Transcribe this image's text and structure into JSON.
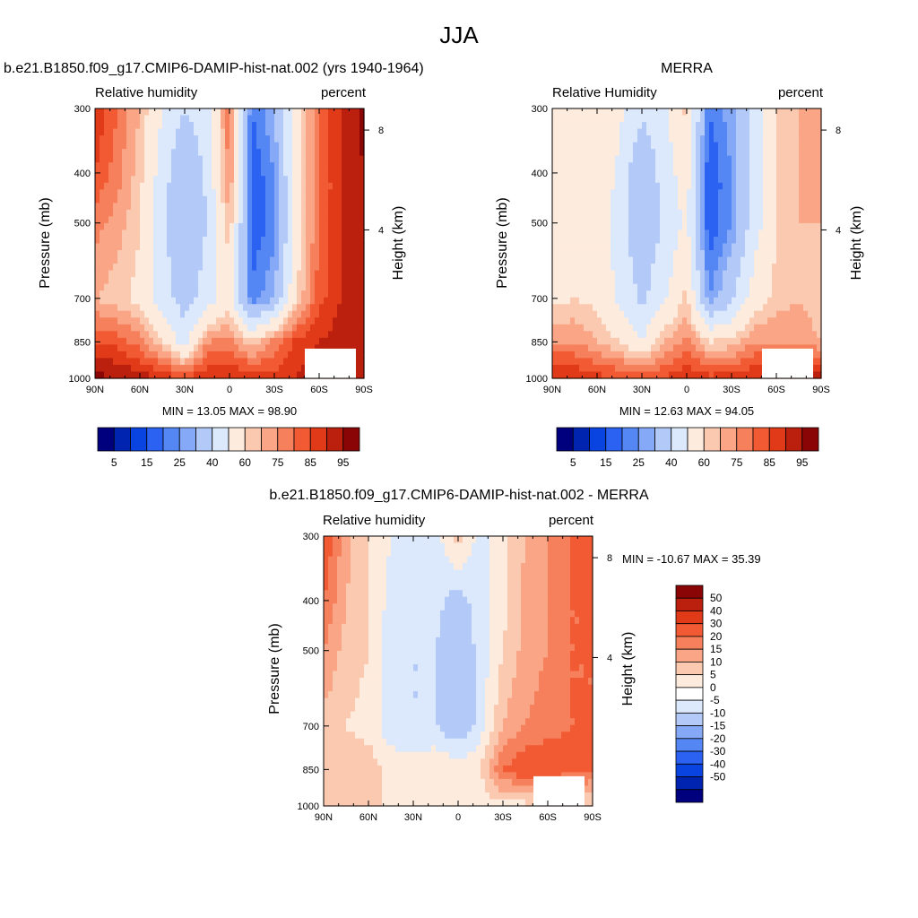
{
  "main_title": "JJA",
  "colors": {
    "abs_scale": [
      "#00007f",
      "#0024b0",
      "#0a44e0",
      "#2b62f2",
      "#5587f4",
      "#85a9f6",
      "#b3caf8",
      "#dce8fb",
      "#fdebdd",
      "#fbc9b0",
      "#f9a586",
      "#f6805c",
      "#f15a33",
      "#e03a18",
      "#bb200f",
      "#8a0606"
    ],
    "diff_scale": [
      "#00007f",
      "#0024b0",
      "#0a44e0",
      "#2b62f2",
      "#5587f4",
      "#85a9f6",
      "#b3caf8",
      "#dce8fb",
      "#ffffff",
      "#fdebdd",
      "#fbc9b0",
      "#f9a586",
      "#f6805c",
      "#f15a33",
      "#e03a18",
      "#bb200f",
      "#8a0606"
    ]
  },
  "panels": [
    {
      "title": "b.e21.B1850.f09_g17.CMIP6-DAMIP-hist-nat.002 (yrs 1940-1964)",
      "variable": "Relative humidity",
      "units": "percent",
      "ylabel": "Pressure (mb)",
      "right_label": "Height (km)",
      "stats": "MIN =  13.05  MAX =  98.90"
    },
    {
      "title": "MERRA",
      "variable": "Relative Humidity",
      "units": "percent",
      "ylabel": "Pressure (mb)",
      "right_label": "Height (km)",
      "stats": "MIN =  12.63  MAX =  94.05"
    },
    {
      "title": "b.e21.B1850.f09_g17.CMIP6-DAMIP-hist-nat.002 - MERRA",
      "variable": "Relative humidity",
      "units": "percent",
      "ylabel": "Pressure (mb)",
      "right_label": "Height (km)",
      "stats": "MIN = -10.67  MAX =  35.39"
    }
  ],
  "chart_data": [
    {
      "type": "heatmap",
      "title": "b.e21.B1850.f09_g17.CMIP6-DAMIP-hist-nat.002 (yrs 1940-1964)",
      "xlabel": "",
      "ylabel": "Pressure (mb)",
      "x_ticks": [
        "90N",
        "60N",
        "30N",
        "0",
        "30S",
        "60S",
        "90S"
      ],
      "y_ticks": [
        "300",
        "400",
        "500",
        "700",
        "850",
        "1000"
      ],
      "right_ticks": [
        "8",
        "4"
      ],
      "colorbar_labels": [
        "5",
        "15",
        "25",
        "40",
        "60",
        "75",
        "85",
        "95"
      ],
      "colorbar_levels": [
        5,
        10,
        15,
        20,
        25,
        30,
        40,
        50,
        60,
        65,
        70,
        75,
        80,
        85,
        90,
        95
      ],
      "min": 13.05,
      "max": 98.9,
      "latitudes": [
        90,
        75,
        60,
        45,
        30,
        15,
        0,
        -15,
        -30,
        -45,
        -60,
        -75,
        -90
      ],
      "pressures": [
        300,
        400,
        500,
        700,
        850,
        1000
      ],
      "values": [
        [
          85,
          75,
          65,
          50,
          40,
          45,
          75,
          20,
          30,
          55,
          75,
          85,
          92
        ],
        [
          80,
          72,
          62,
          45,
          30,
          42,
          72,
          15,
          25,
          55,
          75,
          85,
          90
        ],
        [
          72,
          68,
          60,
          42,
          30,
          40,
          65,
          15,
          22,
          55,
          75,
          85,
          90
        ],
        [
          65,
          62,
          58,
          45,
          35,
          45,
          55,
          22,
          30,
          60,
          78,
          85,
          90
        ],
        [
          80,
          78,
          72,
          60,
          45,
          70,
          72,
          60,
          72,
          82,
          85,
          88,
          90
        ],
        [
          92,
          90,
          88,
          85,
          80,
          85,
          85,
          85,
          82,
          85,
          88,
          90,
          90
        ]
      ]
    },
    {
      "type": "heatmap",
      "title": "MERRA",
      "xlabel": "",
      "ylabel": "Pressure (mb)",
      "x_ticks": [
        "90N",
        "60N",
        "30N",
        "0",
        "30S",
        "60S",
        "90S"
      ],
      "y_ticks": [
        "300",
        "400",
        "500",
        "700",
        "850",
        "1000"
      ],
      "right_ticks": [
        "8",
        "4"
      ],
      "colorbar_labels": [
        "5",
        "15",
        "25",
        "40",
        "60",
        "75",
        "85",
        "95"
      ],
      "colorbar_levels": [
        5,
        10,
        15,
        20,
        25,
        30,
        40,
        50,
        60,
        65,
        70,
        75,
        80,
        85,
        90,
        95
      ],
      "min": 12.63,
      "max": 94.05,
      "latitudes": [
        90,
        75,
        60,
        45,
        30,
        15,
        0,
        -15,
        -30,
        -45,
        -60,
        -75,
        -90
      ],
      "pressures": [
        300,
        400,
        500,
        700,
        850,
        1000
      ],
      "values": [
        [
          55,
          60,
          60,
          52,
          42,
          48,
          62,
          20,
          28,
          45,
          60,
          65,
          70
        ],
        [
          55,
          60,
          58,
          48,
          30,
          45,
          55,
          15,
          25,
          45,
          60,
          65,
          70
        ],
        [
          55,
          58,
          55,
          45,
          30,
          42,
          52,
          15,
          25,
          45,
          60,
          65,
          65
        ],
        [
          58,
          60,
          58,
          48,
          38,
          48,
          62,
          25,
          38,
          55,
          62,
          65,
          60
        ],
        [
          70,
          70,
          65,
          60,
          50,
          65,
          72,
          60,
          62,
          70,
          70,
          70,
          65
        ],
        [
          85,
          85,
          82,
          80,
          78,
          80,
          85,
          82,
          82,
          85,
          88,
          92,
          90
        ]
      ]
    },
    {
      "type": "heatmap",
      "title": "b.e21.B1850.f09_g17.CMIP6-DAMIP-hist-nat.002 - MERRA",
      "xlabel": "",
      "ylabel": "Pressure (mb)",
      "x_ticks": [
        "90N",
        "60N",
        "30N",
        "0",
        "30S",
        "60S",
        "90S"
      ],
      "y_ticks": [
        "300",
        "400",
        "500",
        "700",
        "850",
        "1000"
      ],
      "right_ticks": [
        "8",
        "4"
      ],
      "colorbar_labels": [
        "50",
        "40",
        "30",
        "20",
        "15",
        "10",
        "5",
        "0",
        "-5",
        "-10",
        "-15",
        "-20",
        "-30",
        "-40",
        "-50"
      ],
      "colorbar_levels": [
        -50,
        -40,
        -30,
        -20,
        -15,
        -10,
        -5,
        0,
        5,
        10,
        15,
        20,
        30,
        40,
        50
      ],
      "min": -10.67,
      "max": 35.39,
      "latitudes": [
        90,
        75,
        60,
        45,
        30,
        15,
        0,
        -15,
        -30,
        -45,
        -60,
        -75,
        -90
      ],
      "pressures": [
        300,
        400,
        500,
        700,
        850,
        1000
      ],
      "values": [
        [
          25,
          12,
          5,
          0,
          -2,
          -3,
          8,
          -3,
          3,
          10,
          15,
          20,
          22
        ],
        [
          20,
          10,
          5,
          -2,
          -3,
          -3,
          -8,
          -2,
          3,
          12,
          15,
          20,
          20
        ],
        [
          15,
          8,
          5,
          -3,
          -5,
          -5,
          -10,
          -3,
          5,
          12,
          15,
          20,
          20
        ],
        [
          8,
          5,
          3,
          -3,
          -5,
          -5,
          -10,
          -3,
          10,
          15,
          18,
          20,
          20
        ],
        [
          10,
          8,
          8,
          3,
          3,
          5,
          3,
          5,
          20,
          25,
          25,
          22,
          20
        ],
        [
          5,
          5,
          5,
          5,
          3,
          3,
          0,
          2,
          3,
          3,
          5,
          5,
          5
        ]
      ]
    }
  ]
}
